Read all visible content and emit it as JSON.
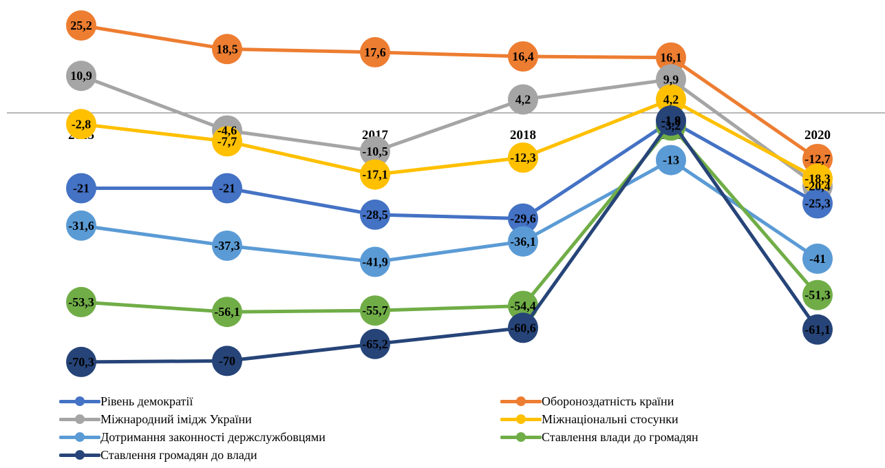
{
  "chart_data": {
    "type": "line",
    "categories": [
      "2015",
      "2016",
      "2017",
      "2018",
      "2019",
      "2020"
    ],
    "category_labels_shown": [
      "2015",
      "2016",
      "2017",
      "2018",
      "2019",
      "2020"
    ],
    "ylim": [
      -72,
      27
    ],
    "grid": false,
    "legend_position": "bottom",
    "series": [
      {
        "name": "Оборонoздатність країни",
        "color": "#ED7D31",
        "values": [
          25.2,
          18.5,
          17.6,
          16.4,
          16.1,
          -12.7
        ],
        "labels": [
          "25,2",
          "18,5",
          "17,6",
          "16,4",
          "16,1",
          "-12,7"
        ]
      },
      {
        "name": "Міжнародний імідж України",
        "color": "#A5A5A5",
        "values": [
          10.9,
          -4.6,
          -10.5,
          4.2,
          9.9,
          -20.4
        ],
        "labels": [
          "10,9",
          "-4,6",
          "-10,5",
          "4,2",
          "9,9",
          "-20,4"
        ]
      },
      {
        "name": "Міжнаціональні стосунки",
        "color": "#FFC000",
        "values": [
          -2.8,
          -7.7,
          -17.1,
          -12.3,
          4.2,
          -18.3
        ],
        "labels": [
          "-2,8",
          "-7,7",
          "-17,1",
          "-12,3",
          "4,2",
          "-18,3"
        ]
      },
      {
        "name": "Рівень демократії",
        "color": "#4472C4",
        "values": [
          -21,
          -21,
          -28.5,
          -29.6,
          -1.9,
          -25.3
        ],
        "labels": [
          "-21",
          "-21",
          "-28,5",
          "-29,6",
          "-1,9",
          "-25,3"
        ]
      },
      {
        "name": "Дотримання законності держслужбовцями",
        "color": "#5B9BD5",
        "values": [
          -31.6,
          -37.3,
          -41.9,
          -36.1,
          -13,
          -41
        ],
        "labels": [
          "-31,6",
          "-37,3",
          "-41,9",
          "-36,1",
          "-13",
          "-41"
        ]
      },
      {
        "name": "Ставлення влади до громадян",
        "color": "#70AD47",
        "values": [
          -53.3,
          -56.1,
          -55.7,
          -54.4,
          -3.2,
          -51.3
        ],
        "labels": [
          "-53,3",
          "-56,1",
          "-55,7",
          "-54,4",
          "-3,2",
          "-51,3"
        ]
      },
      {
        "name": "Ставлення громадян до влади",
        "color": "#264478",
        "values": [
          -70.3,
          -70,
          -65.2,
          -60.6,
          -1.8,
          -61.1
        ],
        "labels": [
          "-70,3",
          "-70",
          "-65,2",
          "-60,6",
          "-1,8",
          "-61,1"
        ]
      }
    ]
  },
  "legend": {
    "items": [
      {
        "label": "Рівень демократії",
        "color": "#4472C4"
      },
      {
        "label": "Оборонoздатність країни",
        "color": "#ED7D31"
      },
      {
        "label": "Міжнародний імідж України",
        "color": "#A5A5A5"
      },
      {
        "label": "Міжнаціональні стосунки",
        "color": "#FFC000"
      },
      {
        "label": "Дотримання законності держслужбовцями",
        "color": "#5B9BD5"
      },
      {
        "label": "Ставлення влади до громадян",
        "color": "#70AD47"
      },
      {
        "label": "Ставлення громадян до влади",
        "color": "#264478"
      }
    ]
  }
}
